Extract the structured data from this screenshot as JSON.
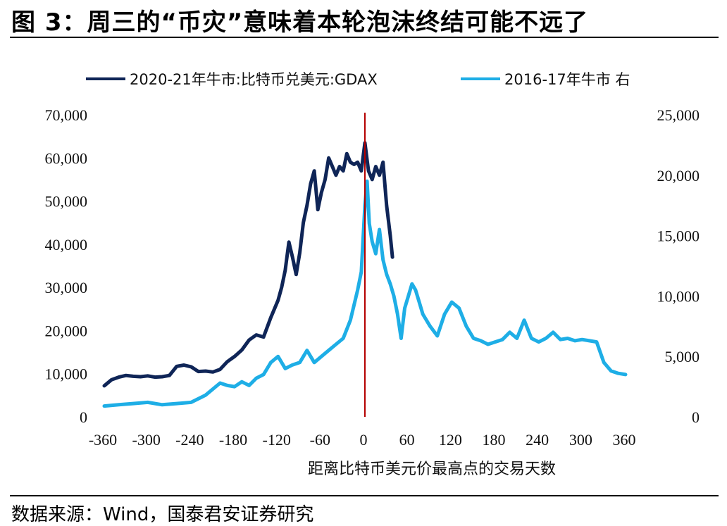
{
  "header": {
    "title": "图 3：周三的“币灾”意味着本轮泡沫终结可能不远了"
  },
  "footer": {
    "source": "数据来源：Wind，国泰君安证券研究"
  },
  "colors": {
    "series_2020": "#0f2557",
    "series_2016": "#1eaee6",
    "peak_line": "#b40000"
  },
  "chart_data": {
    "type": "line",
    "xlabel": "距离比特币美元价最高点的交易天数",
    "x_ticks": [
      -360,
      -300,
      -240,
      -180,
      -120,
      -60,
      0,
      60,
      120,
      180,
      240,
      300,
      360
    ],
    "x_tick_labels": [
      "-360",
      "-300",
      "-240",
      "-180",
      "-120",
      "-60",
      "0",
      "60",
      "120",
      "180",
      "240",
      "300",
      "360"
    ],
    "xlim": [
      -360,
      360
    ],
    "ylim_left": [
      0,
      70000
    ],
    "ylim_right": [
      0,
      25000
    ],
    "y_left_ticks": [
      0,
      10000,
      20000,
      30000,
      40000,
      50000,
      60000,
      70000
    ],
    "y_left_tick_labels": [
      "0",
      "10,000",
      "20,000",
      "30,000",
      "40,000",
      "50,000",
      "60,000",
      "70,000"
    ],
    "y_right_ticks": [
      0,
      5000,
      10000,
      15000,
      20000,
      25000
    ],
    "y_right_tick_labels": [
      "0",
      "5,000",
      "10,000",
      "15,000",
      "20,000",
      "25,000"
    ],
    "vertical_marker_x": 0,
    "legend": {
      "position": "top",
      "entries": [
        "2020-21年牛市:比特币兑美元:GDAX",
        "2016-17年牛市 右"
      ]
    },
    "series": [
      {
        "name": "2020-21年牛市:比特币兑美元:GDAX",
        "axis": "left",
        "x": [
          -360,
          -350,
          -340,
          -330,
          -320,
          -310,
          -300,
          -290,
          -280,
          -270,
          -260,
          -250,
          -240,
          -230,
          -220,
          -210,
          -200,
          -190,
          -180,
          -170,
          -160,
          -150,
          -140,
          -130,
          -120,
          -115,
          -110,
          -105,
          -100,
          -95,
          -90,
          -85,
          -80,
          -75,
          -70,
          -65,
          -60,
          -55,
          -50,
          -45,
          -40,
          -35,
          -30,
          -25,
          -20,
          -15,
          -10,
          -5,
          0,
          5,
          10,
          15,
          20,
          25,
          30,
          35,
          38
        ],
        "y": [
          7200,
          8600,
          9200,
          9600,
          9400,
          9300,
          9500,
          9200,
          9300,
          9600,
          11700,
          12000,
          11600,
          10500,
          10600,
          10400,
          11000,
          12800,
          14000,
          15500,
          17800,
          19000,
          18500,
          23000,
          27000,
          30000,
          34000,
          40500,
          37000,
          33000,
          38000,
          45000,
          49000,
          54000,
          57000,
          48000,
          52000,
          55000,
          60000,
          58000,
          56000,
          58000,
          57000,
          61000,
          59000,
          58500,
          59000,
          57000,
          63500,
          57000,
          55000,
          58000,
          56000,
          59000,
          49000,
          42000,
          37000
        ]
      },
      {
        "name": "2016-17年牛市 右",
        "axis": "right",
        "x": [
          -360,
          -340,
          -320,
          -300,
          -280,
          -260,
          -240,
          -220,
          -200,
          -190,
          -180,
          -170,
          -160,
          -150,
          -140,
          -130,
          -120,
          -110,
          -100,
          -90,
          -80,
          -70,
          -60,
          -50,
          -40,
          -30,
          -20,
          -10,
          -5,
          0,
          3,
          6,
          10,
          15,
          20,
          25,
          30,
          35,
          40,
          45,
          50,
          55,
          60,
          65,
          70,
          75,
          80,
          90,
          100,
          110,
          120,
          130,
          140,
          150,
          160,
          170,
          180,
          190,
          200,
          210,
          220,
          230,
          240,
          250,
          260,
          270,
          280,
          290,
          300,
          310,
          320,
          330,
          340,
          350,
          360
        ],
        "y": [
          900,
          1000,
          1100,
          1200,
          1000,
          1100,
          1200,
          1800,
          2800,
          2600,
          2500,
          2900,
          2600,
          3200,
          3500,
          4500,
          5000,
          4000,
          4300,
          4500,
          5500,
          4500,
          5000,
          5500,
          6000,
          6500,
          8000,
          10500,
          12000,
          17500,
          19500,
          16000,
          14500,
          13500,
          15500,
          13000,
          11800,
          11000,
          10000,
          8500,
          6500,
          9000,
          10000,
          11000,
          10500,
          9500,
          8500,
          7500,
          6700,
          8500,
          9500,
          9000,
          7500,
          6500,
          6300,
          6000,
          6200,
          6400,
          7000,
          6500,
          8000,
          6500,
          6200,
          6500,
          7000,
          6400,
          6500,
          6300,
          6400,
          6300,
          6200,
          4500,
          3800,
          3600,
          3500
        ]
      }
    ]
  }
}
